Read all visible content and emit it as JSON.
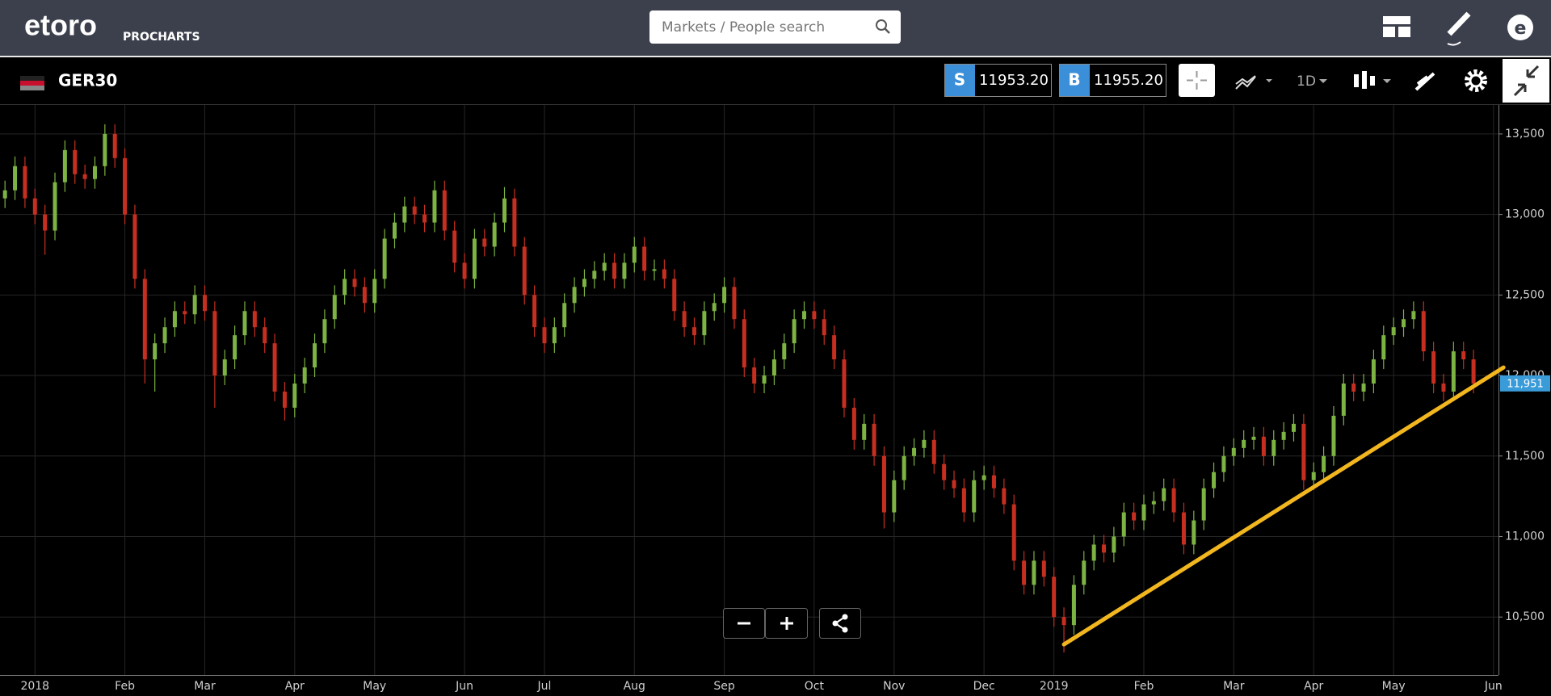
{
  "header": {
    "logo": "etoro",
    "product": "PROCHARTS",
    "search_placeholder": "Markets / People search"
  },
  "toolbar": {
    "instrument": "GER30",
    "sell": {
      "label": "S",
      "price": "11953.20"
    },
    "buy": {
      "label": "B",
      "price": "11955.20"
    },
    "timeframe": "1D"
  },
  "chart_data": {
    "type": "candlestick",
    "up_color": "#7cb342",
    "down_color": "#c62f1f",
    "grid": true,
    "ylim": [
      10140,
      13680
    ],
    "yticks": [
      {
        "value": 10500,
        "label": "10,500"
      },
      {
        "value": 11000,
        "label": "11,000"
      },
      {
        "value": 11500,
        "label": "11,500"
      },
      {
        "value": 12000,
        "label": "12,000"
      },
      {
        "value": 12500,
        "label": "12,500"
      },
      {
        "value": 13000,
        "label": "13,000"
      },
      {
        "value": 13500,
        "label": "13,500"
      }
    ],
    "categories": [
      null,
      null,
      null,
      "2018",
      null,
      null,
      null,
      null,
      null,
      null,
      null,
      null,
      "Feb",
      null,
      null,
      null,
      null,
      null,
      null,
      null,
      "Mar",
      null,
      null,
      null,
      null,
      null,
      null,
      null,
      null,
      "Apr",
      null,
      null,
      null,
      null,
      null,
      null,
      null,
      "May",
      null,
      null,
      null,
      null,
      null,
      null,
      null,
      null,
      "Jun",
      null,
      null,
      null,
      null,
      null,
      null,
      null,
      "Jul",
      null,
      null,
      null,
      null,
      null,
      null,
      null,
      null,
      "Aug",
      null,
      null,
      null,
      null,
      null,
      null,
      null,
      null,
      "Sep",
      null,
      null,
      null,
      null,
      null,
      null,
      null,
      null,
      "Oct",
      null,
      null,
      null,
      null,
      null,
      null,
      null,
      "Nov",
      null,
      null,
      null,
      null,
      null,
      null,
      null,
      null,
      "Dec",
      null,
      null,
      null,
      null,
      null,
      null,
      "2019",
      null,
      null,
      null,
      null,
      null,
      null,
      null,
      null,
      "Feb",
      null,
      null,
      null,
      null,
      null,
      null,
      null,
      null,
      "Mar",
      null,
      null,
      null,
      null,
      null,
      null,
      null,
      "Apr",
      null,
      null,
      null,
      null,
      null,
      null,
      null,
      "May",
      null,
      null,
      null,
      null,
      null,
      null,
      null,
      null,
      null,
      "Jun"
    ],
    "open": [
      13100,
      13150,
      13300,
      13100,
      13000,
      12900,
      13200,
      13400,
      13250,
      13220,
      13300,
      13500,
      13350,
      13000,
      12600,
      12100,
      12200,
      12300,
      12400,
      12380,
      12500,
      12400,
      12000,
      12100,
      12250,
      12400,
      12300,
      12200,
      11900,
      11800,
      11950,
      12050,
      12200,
      12350,
      12500,
      12600,
      12550,
      12450,
      12600,
      12850,
      12950,
      13050,
      13000,
      12950,
      13150,
      12900,
      12700,
      12600,
      12850,
      12800,
      12950,
      13100,
      12800,
      12500,
      12300,
      12200,
      12300,
      12450,
      12550,
      12600,
      12650,
      12700,
      12600,
      12700,
      12800,
      12650,
      12660,
      12600,
      12400,
      12300,
      12250,
      12400,
      12450,
      12550,
      12350,
      12050,
      11950,
      12000,
      12100,
      12200,
      12350,
      12400,
      12350,
      12250,
      12100,
      11800,
      11600,
      11700,
      11500,
      11150,
      11350,
      11500,
      11550,
      11600,
      11450,
      11350,
      11300,
      11150,
      11350,
      11380,
      11300,
      11200,
      10850,
      10700,
      10850,
      10750,
      10500,
      10450,
      10700,
      10850,
      10950,
      10900,
      11000,
      11150,
      11100,
      11200,
      11220,
      11300,
      11150,
      10950,
      11100,
      11300,
      11400,
      11500,
      11550,
      11600,
      11620,
      11500,
      11600,
      11650,
      11700,
      11350,
      11400,
      11500,
      11750,
      11950,
      11900,
      11950,
      12100,
      12250,
      12300,
      12350,
      12400,
      12150,
      11950,
      11900,
      12150,
      12100,
      null,
      null
    ],
    "high": [
      13210,
      13360,
      13360,
      13160,
      13060,
      13260,
      13460,
      13460,
      13310,
      13360,
      13560,
      13560,
      13410,
      13060,
      12660,
      12260,
      12360,
      12460,
      12460,
      12560,
      12560,
      12460,
      12160,
      12310,
      12460,
      12460,
      12360,
      12260,
      11960,
      12010,
      12110,
      12260,
      12410,
      12560,
      12660,
      12660,
      12610,
      12660,
      12910,
      13010,
      13110,
      13110,
      13060,
      13210,
      13210,
      12960,
      12760,
      12910,
      12910,
      13010,
      13170,
      13160,
      12860,
      12560,
      12360,
      12360,
      12510,
      12610,
      12660,
      12710,
      12760,
      12760,
      12760,
      12860,
      12860,
      12720,
      12720,
      12660,
      12460,
      12360,
      12460,
      12510,
      12610,
      12610,
      12410,
      12110,
      12060,
      12160,
      12260,
      12410,
      12460,
      12460,
      12410,
      12310,
      12160,
      11860,
      11760,
      11760,
      11560,
      11410,
      11560,
      11610,
      11660,
      11660,
      11510,
      11410,
      11360,
      11410,
      11440,
      11440,
      11360,
      11260,
      10910,
      10910,
      10910,
      10810,
      10560,
      10760,
      10910,
      11010,
      11010,
      11060,
      11210,
      11210,
      11260,
      11280,
      11360,
      11360,
      11210,
      11160,
      11360,
      11460,
      11560,
      11610,
      11660,
      11680,
      11680,
      11660,
      11710,
      11760,
      11760,
      11460,
      11560,
      11810,
      12010,
      12010,
      12010,
      12160,
      12310,
      12360,
      12410,
      12460,
      12460,
      12210,
      12010,
      12210,
      12210,
      12160,
      null,
      null
    ],
    "low": [
      13040,
      13090,
      13040,
      12940,
      12750,
      12840,
      13140,
      13190,
      13160,
      13160,
      13240,
      13290,
      12940,
      12540,
      11950,
      11900,
      12140,
      12240,
      12320,
      12320,
      12340,
      11800,
      11940,
      12040,
      12190,
      12240,
      12140,
      11840,
      11720,
      11740,
      11890,
      11990,
      12140,
      12290,
      12440,
      12490,
      12390,
      12390,
      12540,
      12790,
      12890,
      12940,
      12890,
      12890,
      12840,
      12640,
      12540,
      12540,
      12740,
      12740,
      12890,
      12740,
      12440,
      12240,
      12140,
      12140,
      12240,
      12390,
      12490,
      12540,
      12590,
      12540,
      12540,
      12640,
      12590,
      12590,
      12540,
      12340,
      12240,
      12190,
      12190,
      12340,
      12390,
      12290,
      11990,
      11890,
      11890,
      11940,
      12040,
      12140,
      12290,
      12290,
      12190,
      12040,
      11740,
      11540,
      11540,
      11440,
      11050,
      11090,
      11290,
      11440,
      11490,
      11390,
      11290,
      11240,
      11090,
      11090,
      11290,
      11240,
      11140,
      10790,
      10640,
      10640,
      10690,
      10440,
      10280,
      10390,
      10640,
      10790,
      10840,
      10840,
      10940,
      11040,
      11040,
      11140,
      11160,
      11090,
      10890,
      10890,
      11040,
      11240,
      11340,
      11440,
      11490,
      11540,
      11440,
      11440,
      11540,
      11590,
      11290,
      11290,
      11340,
      11440,
      11690,
      11840,
      11840,
      11890,
      12040,
      12190,
      12240,
      12290,
      12090,
      11890,
      11840,
      11840,
      12040,
      11890,
      null,
      null
    ],
    "close": [
      13150,
      13300,
      13100,
      13000,
      12900,
      13200,
      13400,
      13250,
      13220,
      13300,
      13500,
      13350,
      13000,
      12600,
      12100,
      12200,
      12300,
      12400,
      12380,
      12500,
      12400,
      12000,
      12100,
      12250,
      12400,
      12300,
      12200,
      11900,
      11800,
      11950,
      12050,
      12200,
      12350,
      12500,
      12600,
      12550,
      12450,
      12600,
      12850,
      12950,
      13050,
      13000,
      12950,
      13150,
      12900,
      12700,
      12600,
      12850,
      12800,
      12950,
      13100,
      12800,
      12500,
      12300,
      12200,
      12300,
      12450,
      12550,
      12600,
      12650,
      12700,
      12600,
      12700,
      12800,
      12650,
      12660,
      12600,
      12400,
      12300,
      12250,
      12400,
      12450,
      12550,
      12350,
      12050,
      11950,
      12000,
      12100,
      12200,
      12350,
      12400,
      12350,
      12250,
      12100,
      11800,
      11600,
      11700,
      11500,
      11150,
      11350,
      11500,
      11550,
      11600,
      11450,
      11350,
      11300,
      11150,
      11350,
      11380,
      11300,
      11200,
      10850,
      10700,
      10850,
      10750,
      10500,
      10450,
      10700,
      10850,
      10950,
      10900,
      11000,
      11150,
      11100,
      11200,
      11220,
      11300,
      11150,
      10950,
      11100,
      11300,
      11400,
      11500,
      11550,
      11600,
      11620,
      11500,
      11600,
      11650,
      11700,
      11350,
      11400,
      11500,
      11750,
      11950,
      11900,
      11950,
      12100,
      12250,
      12300,
      12350,
      12400,
      12150,
      11950,
      11900,
      12150,
      12100,
      11950,
      null,
      null
    ],
    "trendline": {
      "color": "#f2b61f",
      "start": {
        "index": 106,
        "value": 10330
      },
      "end": {
        "index": 150,
        "value": 12050
      }
    },
    "last_price": {
      "value": 11951,
      "label": "11,951",
      "color": "#3a9bd9"
    }
  }
}
